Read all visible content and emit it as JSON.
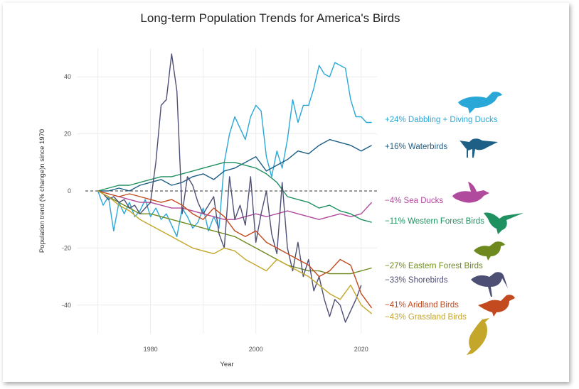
{
  "chart_data": {
    "type": "line",
    "title": "Long-term Population Trends for America's Birds",
    "xlabel": "Year",
    "ylabel": "Population trend (% change)n since 1970",
    "xlim": [
      1966,
      2023
    ],
    "ylim": [
      -50,
      50
    ],
    "xticks": [
      1980,
      2000,
      2020
    ],
    "yticks": [
      40,
      20,
      0,
      -20,
      -40
    ],
    "zero_line": "dashed",
    "series": [
      {
        "name": "Dabbling + Diving Ducks",
        "label": "+24% Dabbling + Diving Ducks",
        "color": "#29a8d8",
        "x": [
          1970,
          1971,
          1972,
          1973,
          1974,
          1975,
          1976,
          1977,
          1978,
          1979,
          1980,
          1981,
          1982,
          1983,
          1984,
          1985,
          1986,
          1987,
          1988,
          1989,
          1990,
          1991,
          1992,
          1993,
          1994,
          1995,
          1996,
          1997,
          1998,
          1999,
          2000,
          2001,
          2002,
          2003,
          2004,
          2005,
          2006,
          2007,
          2008,
          2009,
          2010,
          2011,
          2012,
          2013,
          2014,
          2015,
          2016,
          2017,
          2018,
          2019,
          2020,
          2021,
          2022
        ],
        "y": [
          0,
          -5,
          -2,
          -14,
          -4,
          -8,
          -4,
          -9,
          -7,
          -3,
          -9,
          -6,
          -10,
          -8,
          -12,
          -16,
          -6,
          -9,
          -13,
          -11,
          -6,
          -14,
          -9,
          -13,
          10,
          20,
          26,
          22,
          18,
          26,
          30,
          28,
          12,
          5,
          14,
          8,
          18,
          32,
          24,
          30,
          30,
          36,
          44,
          41,
          40,
          45,
          44,
          43,
          32,
          26,
          26,
          24,
          24
        ]
      },
      {
        "name": "Waterbirds",
        "label": "+16% Waterbirds",
        "color": "#1e5f86",
        "x": [
          1970,
          1972,
          1974,
          1976,
          1978,
          1980,
          1982,
          1984,
          1986,
          1988,
          1990,
          1992,
          1994,
          1996,
          1998,
          2000,
          2002,
          2004,
          2006,
          2008,
          2010,
          2012,
          2014,
          2016,
          2018,
          2020,
          2022
        ],
        "y": [
          0,
          0,
          1,
          0,
          2,
          3,
          4,
          2,
          3,
          5,
          6,
          4,
          7,
          8,
          10,
          12,
          7,
          9,
          11,
          14,
          13,
          16,
          18,
          17,
          16,
          14,
          16
        ]
      },
      {
        "name": "Sea Ducks",
        "label": "−4% Sea Ducks",
        "color": "#b04a9c",
        "x": [
          1970,
          1972,
          1974,
          1976,
          1978,
          1980,
          1982,
          1984,
          1986,
          1988,
          1990,
          1992,
          1994,
          1996,
          1998,
          2000,
          2002,
          2004,
          2006,
          2008,
          2010,
          2012,
          2014,
          2016,
          2018,
          2020,
          2022
        ],
        "y": [
          0,
          -1,
          -2,
          -3,
          -4,
          -4,
          -5,
          -6,
          -6,
          -7,
          -8,
          -9,
          -10,
          -10,
          -9,
          -8,
          -9,
          -8,
          -7,
          -8,
          -9,
          -10,
          -9,
          -8,
          -9,
          -8,
          -4
        ]
      },
      {
        "name": "Western Forest Birds",
        "label": "−11% Western Forest Birds",
        "color": "#1f9160",
        "x": [
          1970,
          1972,
          1974,
          1976,
          1978,
          1980,
          1982,
          1984,
          1986,
          1988,
          1990,
          1992,
          1994,
          1996,
          1998,
          2000,
          2002,
          2004,
          2006,
          2008,
          2010,
          2012,
          2014,
          2016,
          2018,
          2020,
          2022
        ],
        "y": [
          0,
          1,
          2,
          2,
          3,
          4,
          5,
          5,
          6,
          7,
          8,
          9,
          10,
          10,
          9,
          8,
          6,
          3,
          -2,
          -3,
          -4,
          -6,
          -5,
          -7,
          -8,
          -10,
          -11
        ]
      },
      {
        "name": "Eastern Forest Birds",
        "label": "−27% Eastern Forest Birds",
        "color": "#6e8a1e",
        "x": [
          1970,
          1972,
          1974,
          1976,
          1978,
          1980,
          1982,
          1984,
          1986,
          1988,
          1990,
          1992,
          1994,
          1996,
          1998,
          2000,
          2002,
          2004,
          2006,
          2008,
          2010,
          2012,
          2014,
          2016,
          2018,
          2020,
          2022
        ],
        "y": [
          0,
          -2,
          -4,
          -6,
          -8,
          -8,
          -9,
          -10,
          -11,
          -12,
          -13,
          -14,
          -15,
          -16,
          -18,
          -20,
          -22,
          -24,
          -26,
          -27,
          -28,
          -28,
          -29,
          -29,
          -29,
          -28,
          -27
        ]
      },
      {
        "name": "Shorebirds",
        "label": "−33% Shorebirds",
        "color": "#4e4f75",
        "x": [
          1970,
          1971,
          1972,
          1973,
          1974,
          1975,
          1976,
          1977,
          1978,
          1979,
          1980,
          1981,
          1982,
          1983,
          1984,
          1985,
          1986,
          1987,
          1988,
          1989,
          1990,
          1991,
          1992,
          1993,
          1994,
          1995,
          1996,
          1997,
          1998,
          1999,
          2000,
          2001,
          2002,
          2003,
          2004,
          2005,
          2006,
          2007,
          2008,
          2009,
          2010,
          2011,
          2012,
          2013,
          2014,
          2015,
          2016,
          2017,
          2018,
          2019,
          2020
        ],
        "y": [
          0,
          -1,
          -3,
          -2,
          -4,
          -3,
          -6,
          -5,
          -8,
          -6,
          -4,
          10,
          30,
          32,
          48,
          35,
          -8,
          5,
          2,
          -4,
          -8,
          -5,
          -2,
          -15,
          -20,
          5,
          -10,
          -5,
          -12,
          5,
          -18,
          -8,
          0,
          -15,
          -22,
          3,
          -20,
          -28,
          -18,
          -30,
          -24,
          -35,
          -30,
          -38,
          -44,
          -38,
          -40,
          -46,
          -42,
          -38,
          -33
        ]
      },
      {
        "name": "Aridland Birds",
        "label": "−41% Aridland Birds",
        "color": "#c24a1e",
        "x": [
          1970,
          1972,
          1974,
          1976,
          1978,
          1980,
          1982,
          1984,
          1986,
          1988,
          1990,
          1992,
          1994,
          1996,
          1998,
          2000,
          2002,
          2004,
          2006,
          2008,
          2010,
          2012,
          2014,
          2016,
          2018,
          2020,
          2022
        ],
        "y": [
          0,
          -1,
          -2,
          -1,
          -2,
          -3,
          -4,
          -3,
          -5,
          -8,
          -10,
          -6,
          -9,
          -14,
          -16,
          -14,
          -18,
          -20,
          -22,
          -24,
          -26,
          -30,
          -28,
          -24,
          -26,
          -36,
          -41
        ]
      },
      {
        "name": "Grassland Birds",
        "label": "−43% Grassland Birds",
        "color": "#c3a62a",
        "x": [
          1970,
          1972,
          1974,
          1976,
          1978,
          1980,
          1982,
          1984,
          1986,
          1988,
          1990,
          1992,
          1994,
          1996,
          1998,
          2000,
          2002,
          2004,
          2006,
          2008,
          2010,
          2012,
          2014,
          2016,
          2018,
          2020,
          2022
        ],
        "y": [
          0,
          -2,
          -5,
          -7,
          -10,
          -12,
          -14,
          -16,
          -18,
          -20,
          -21,
          -22,
          -20,
          -21,
          -24,
          -26,
          -28,
          -24,
          -26,
          -28,
          -30,
          -33,
          -36,
          -38,
          -33,
          -40,
          -43
        ]
      }
    ]
  },
  "labels": {
    "ducks": "+24% Dabbling + Diving Ducks",
    "waterbirds": "+16% Waterbirds",
    "sea_ducks": "−4% Sea Ducks",
    "western_forest": "−11% Western Forest Birds",
    "eastern_forest": "−27% Eastern Forest Birds",
    "shorebirds": "−33% Shorebirds",
    "aridland": "−41% Aridland Birds",
    "grassland": "−43% Grassland Birds"
  },
  "icons": [
    "duck-icon",
    "waterbird-icon",
    "sea-duck-icon",
    "hummingbird-icon",
    "songbird-icon",
    "shorebird-icon",
    "wren-icon",
    "meadowlark-icon"
  ]
}
